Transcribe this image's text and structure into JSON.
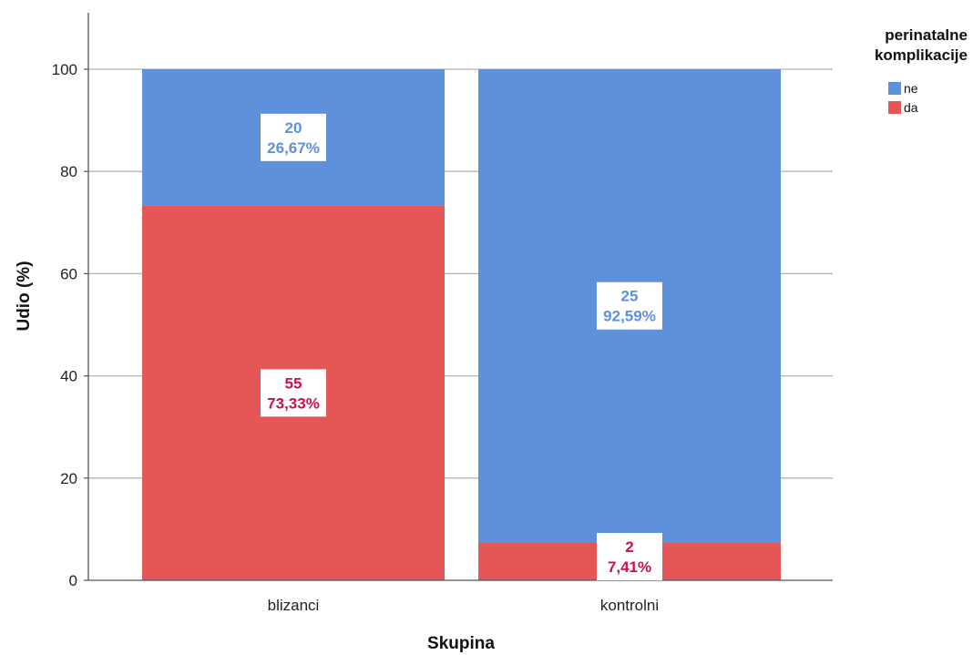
{
  "chart_data": {
    "type": "bar",
    "stacked": true,
    "xlabel": "Skupina",
    "ylabel": "Udio (%)",
    "ylim": [
      0,
      110
    ],
    "yticks": [
      0,
      20,
      40,
      60,
      80,
      100
    ],
    "grid": "horizontal",
    "categories": [
      "blizanci",
      "kontrolni"
    ],
    "legend": {
      "title_lines": [
        "perinatalne",
        "komplikacije"
      ],
      "position": "top-right"
    },
    "series": [
      {
        "name": "da",
        "color": "#e55757",
        "label_color": "#c9114a",
        "values": [
          73.33,
          7.41
        ],
        "counts": [
          "55",
          "2"
        ],
        "percent_labels": [
          "73,33%",
          "7,41%"
        ]
      },
      {
        "name": "ne",
        "color": "#5e90dc",
        "label_color": "#5e90dc",
        "values": [
          26.67,
          92.59
        ],
        "counts": [
          "20",
          "25"
        ],
        "percent_labels": [
          "26,67%",
          "92,59%"
        ]
      }
    ]
  }
}
